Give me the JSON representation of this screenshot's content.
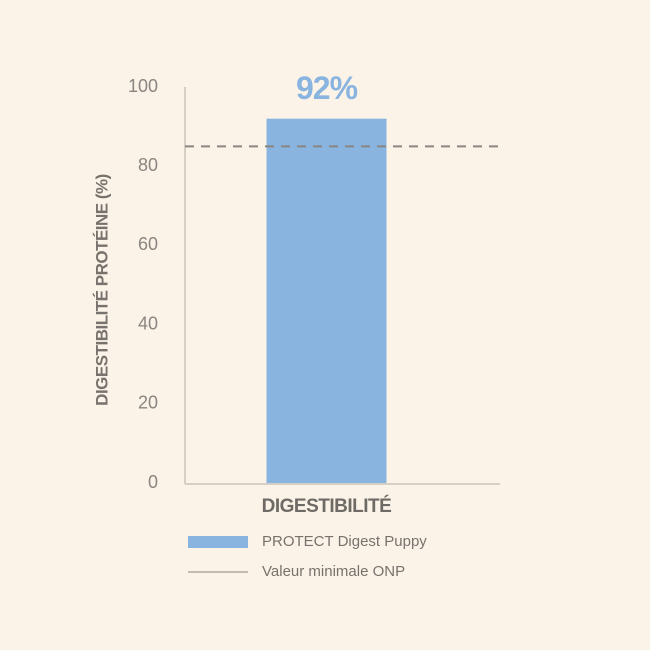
{
  "chart_data": {
    "type": "bar",
    "y_label": "DIGESTIBILITÉ PROTÉINE (%)",
    "categories": [
      "DIGESTIBILITÉ"
    ],
    "series": [
      {
        "name": "PROTECT Digest Puppy",
        "color": "#8ab4e0",
        "values": [
          92
        ],
        "value_labels": [
          "92%"
        ]
      }
    ],
    "reference_line": {
      "name": "Valeur minimale ONP",
      "value": 85,
      "color": "#8a8580",
      "dashed": true
    },
    "ylim": [
      0,
      100
    ],
    "yticks": [
      0,
      20,
      40,
      60,
      80,
      100
    ],
    "grid": false
  }
}
